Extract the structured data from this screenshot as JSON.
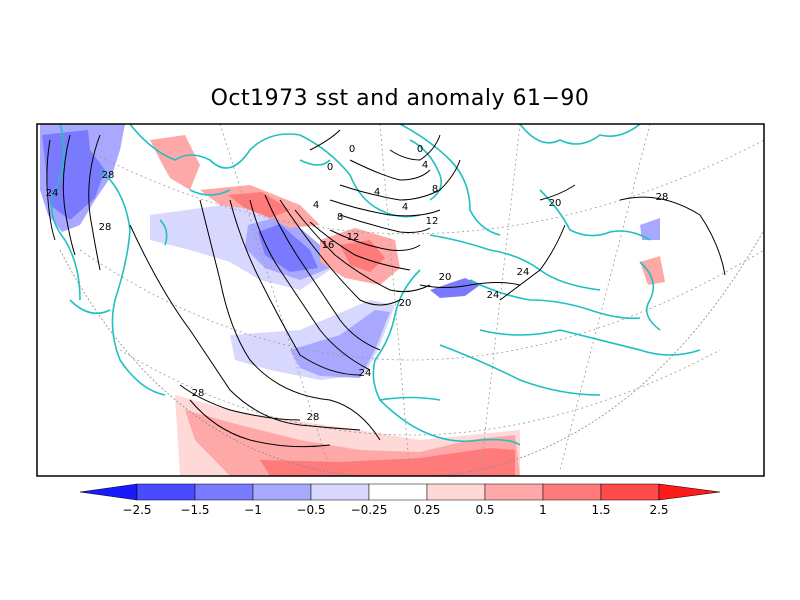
{
  "title": "Oct1973 sst and anomaly 61−90",
  "colors": {
    "land_coast": "#20c0c0",
    "neg_strong": "#1a1aff",
    "neg_2": "#4a4aff",
    "neg_3": "#7a7aff",
    "neg_4": "#a8a8ff",
    "neg_5": "#d8d8ff",
    "neutral": "#ffffff",
    "pos_5": "#ffd8d8",
    "pos_4": "#ffa8a8",
    "pos_3": "#ff7a7a",
    "pos_2": "#ff4a4a",
    "pos_strong": "#ff1a1a"
  },
  "contour_labels": [
    "0",
    "0",
    "0",
    "4",
    "4",
    "4",
    "4",
    "8",
    "8",
    "12",
    "12",
    "16",
    "20",
    "20",
    "20",
    "24",
    "24",
    "24",
    "24",
    "28",
    "28",
    "28",
    "28",
    "28"
  ],
  "colorbar": {
    "labels": [
      "−2.5",
      "−1.5",
      "−1",
      "−0.5",
      "−0.25",
      "0.25",
      "0.5",
      "1",
      "1.5",
      "2.5"
    ]
  }
}
